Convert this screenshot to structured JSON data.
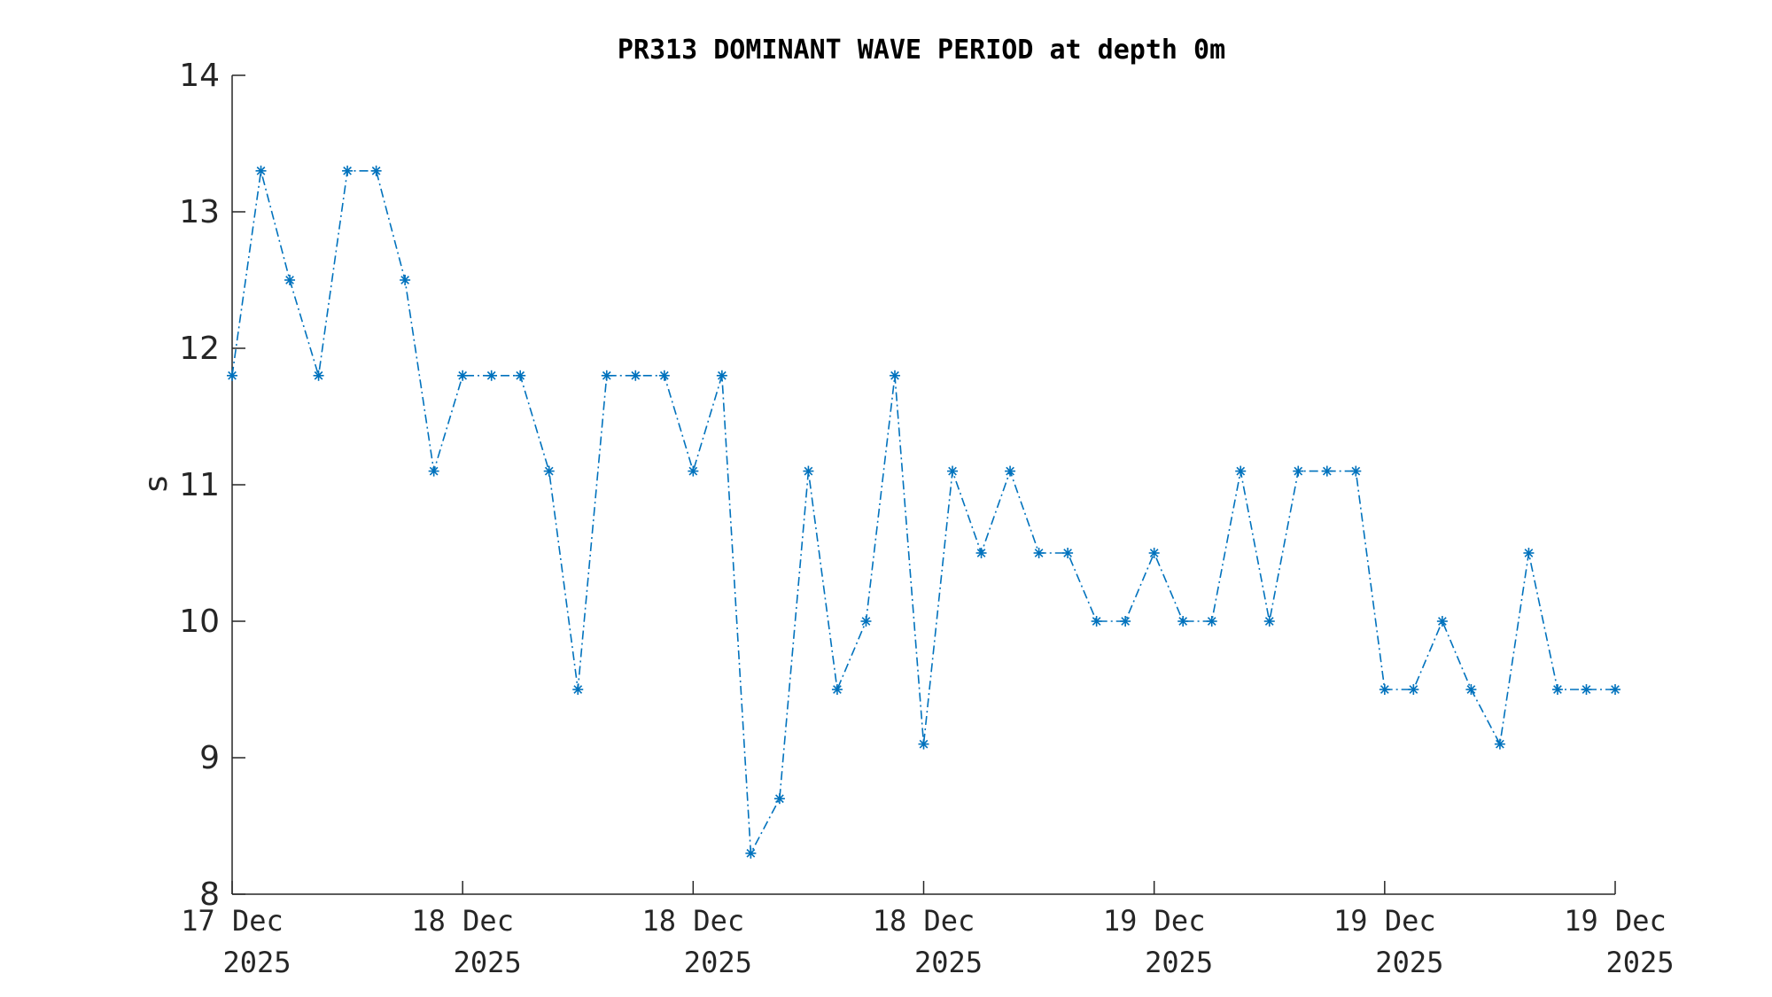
{
  "chart_data": {
    "type": "line",
    "title": "PR313 DOMINANT WAVE PERIOD at depth 0m",
    "xlabel": "",
    "ylabel": "s",
    "ylim": [
      8,
      14
    ],
    "yticks": [
      8,
      9,
      10,
      11,
      12,
      13,
      14
    ],
    "xlim": [
      0,
      48
    ],
    "xticks": [
      {
        "x": 0,
        "line1": "17 Dec",
        "line2": "2025"
      },
      {
        "x": 8,
        "line1": "18 Dec",
        "line2": "2025"
      },
      {
        "x": 16,
        "line1": "18 Dec",
        "line2": "2025"
      },
      {
        "x": 24,
        "line1": "18 Dec",
        "line2": "2025"
      },
      {
        "x": 32,
        "line1": "19 Dec",
        "line2": "2025"
      },
      {
        "x": 40,
        "line1": "19 Dec",
        "line2": "2025"
      },
      {
        "x": 48,
        "line1": "19 Dec",
        "line2": "2025"
      }
    ],
    "grid": false,
    "line_style": "dash-dot",
    "marker": "asterisk",
    "color": "#0072BD",
    "series": [
      {
        "values": [
          11.8,
          13.3,
          12.5,
          11.8,
          13.3,
          13.3,
          12.5,
          11.1,
          11.8,
          11.8,
          11.8,
          11.1,
          9.5,
          11.8,
          11.8,
          11.8,
          11.1,
          11.8,
          8.3,
          8.7,
          11.1,
          9.5,
          10.0,
          11.8,
          9.1,
          11.1,
          10.5,
          11.1,
          10.5,
          10.5,
          10.0,
          10.0,
          10.5,
          10.0,
          10.0,
          11.1,
          10.0,
          11.1,
          11.1,
          11.1,
          9.5,
          9.5,
          10.0,
          9.5,
          9.1,
          10.5,
          9.5,
          9.5,
          9.5
        ]
      }
    ]
  }
}
